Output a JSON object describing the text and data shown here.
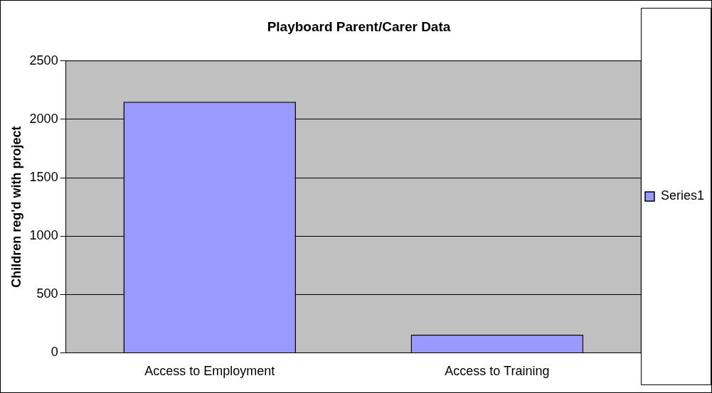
{
  "chart_data": {
    "type": "bar",
    "title": "Playboard Parent/Carer Data",
    "ylabel": "Children reg'd with project",
    "categories": [
      "Access to Employment",
      "Access to Training"
    ],
    "series": [
      {
        "name": "Series1",
        "color": "#9999ff",
        "values": [
          2150,
          155
        ]
      }
    ],
    "ylim": [
      0,
      2500
    ],
    "yticks": [
      0,
      500,
      1000,
      1500,
      2000,
      2500
    ],
    "grid": "y",
    "legend": "right"
  }
}
